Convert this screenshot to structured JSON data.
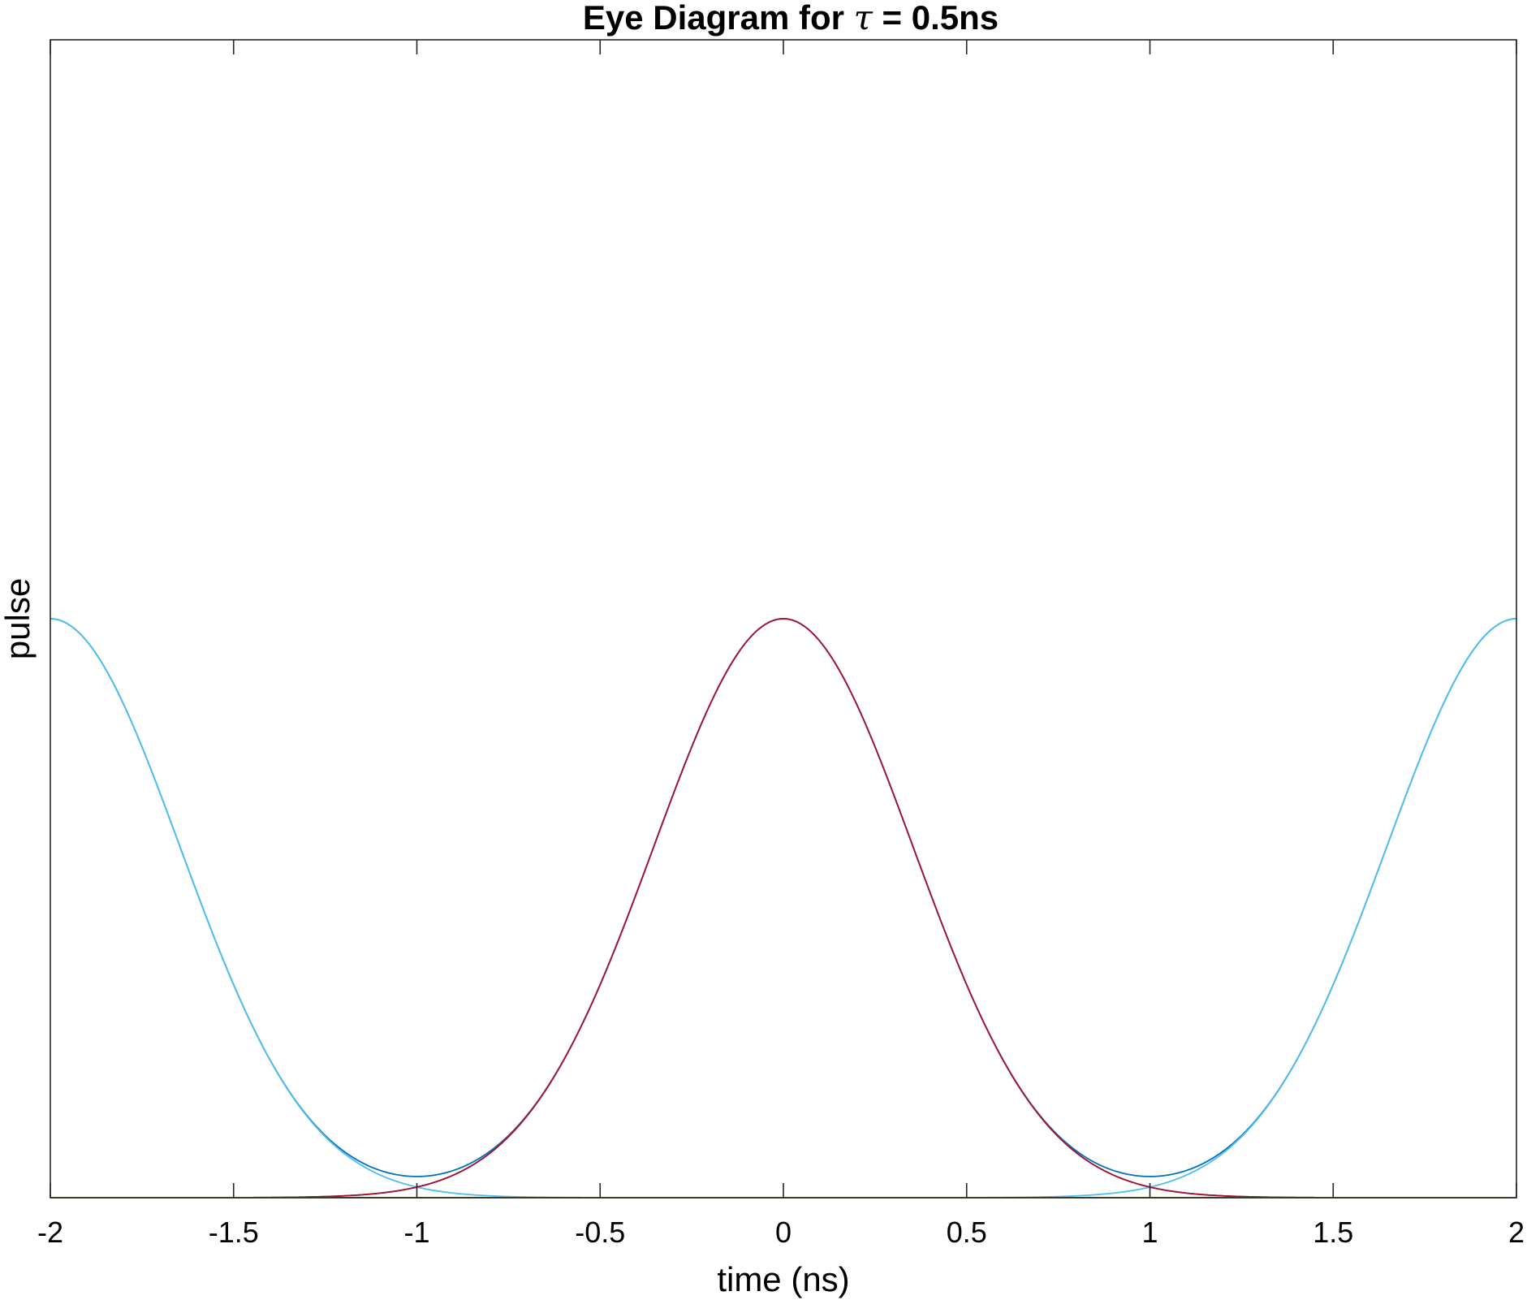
{
  "chart_data": {
    "type": "line",
    "title_prefix": "Eye Diagram for ",
    "title_symbol": "τ",
    "title_suffix": " = 0.5ns",
    "xlabel": "time (ns)",
    "ylabel": "pulse",
    "xlim": [
      -2,
      2
    ],
    "ylim": [
      0,
      2
    ],
    "xticks": [
      -2,
      -1.5,
      -1,
      -0.5,
      0,
      0.5,
      1,
      1.5,
      2
    ],
    "xtick_labels": [
      "-2",
      "-1.5",
      "-1",
      "-0.5",
      "0",
      "0.5",
      "1",
      "1.5",
      "2"
    ],
    "grid": false,
    "legend": "none",
    "pulse": {
      "shape": "gaussian",
      "tau_ns": 0.5,
      "bit_period_ns": 1,
      "peak": 1
    },
    "series": [
      {
        "color": "#0072BD",
        "centers": [
          -2,
          0,
          2
        ]
      },
      {
        "color": "#4DBEEE",
        "centers": [
          -2,
          2
        ]
      },
      {
        "color": "#7E2F8E",
        "centers": [
          0
        ]
      },
      {
        "color": "#A2142F",
        "centers": [
          0
        ]
      },
      {
        "color": "#0072BD",
        "centers": []
      },
      {
        "color": "#D95319",
        "centers": []
      },
      {
        "color": "#77AC30",
        "centers": []
      }
    ]
  }
}
